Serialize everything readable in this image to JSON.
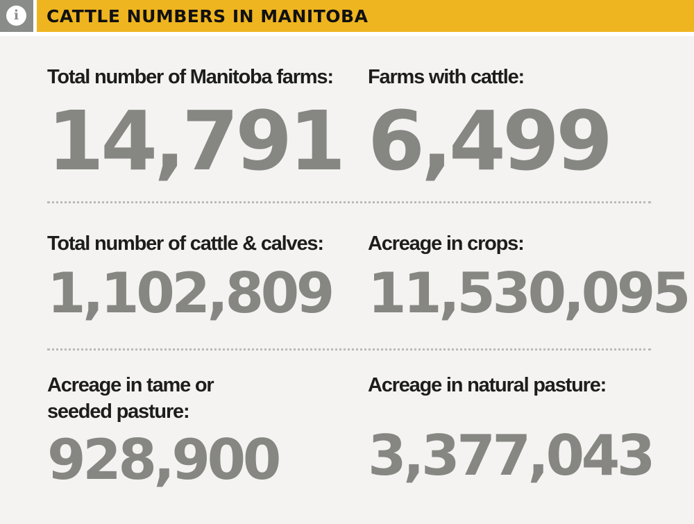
{
  "header": {
    "info_icon": "info-icon",
    "info_glyph": "i",
    "title": "CATTLE NUMBERS IN MANITOBA",
    "accent_color": "#efb520",
    "icon_bg_color": "#8a8c89"
  },
  "stats": [
    {
      "label": "Total number of Manitoba farms:",
      "value": "14,791"
    },
    {
      "label": "Farms with cattle:",
      "value": "6,499"
    },
    {
      "label": "Total number of cattle & calves:",
      "value": "1,102,809"
    },
    {
      "label": "Acreage in crops:",
      "value": "11,530,095"
    },
    {
      "label": "Acreage in tame or\nseeded pasture:",
      "value": "928,900"
    },
    {
      "label": "Acreage in natural pasture:",
      "value": "3,377,043"
    }
  ],
  "colors": {
    "value_text": "#868683",
    "label_text": "#1d1d1d",
    "background": "#f4f3f1"
  }
}
